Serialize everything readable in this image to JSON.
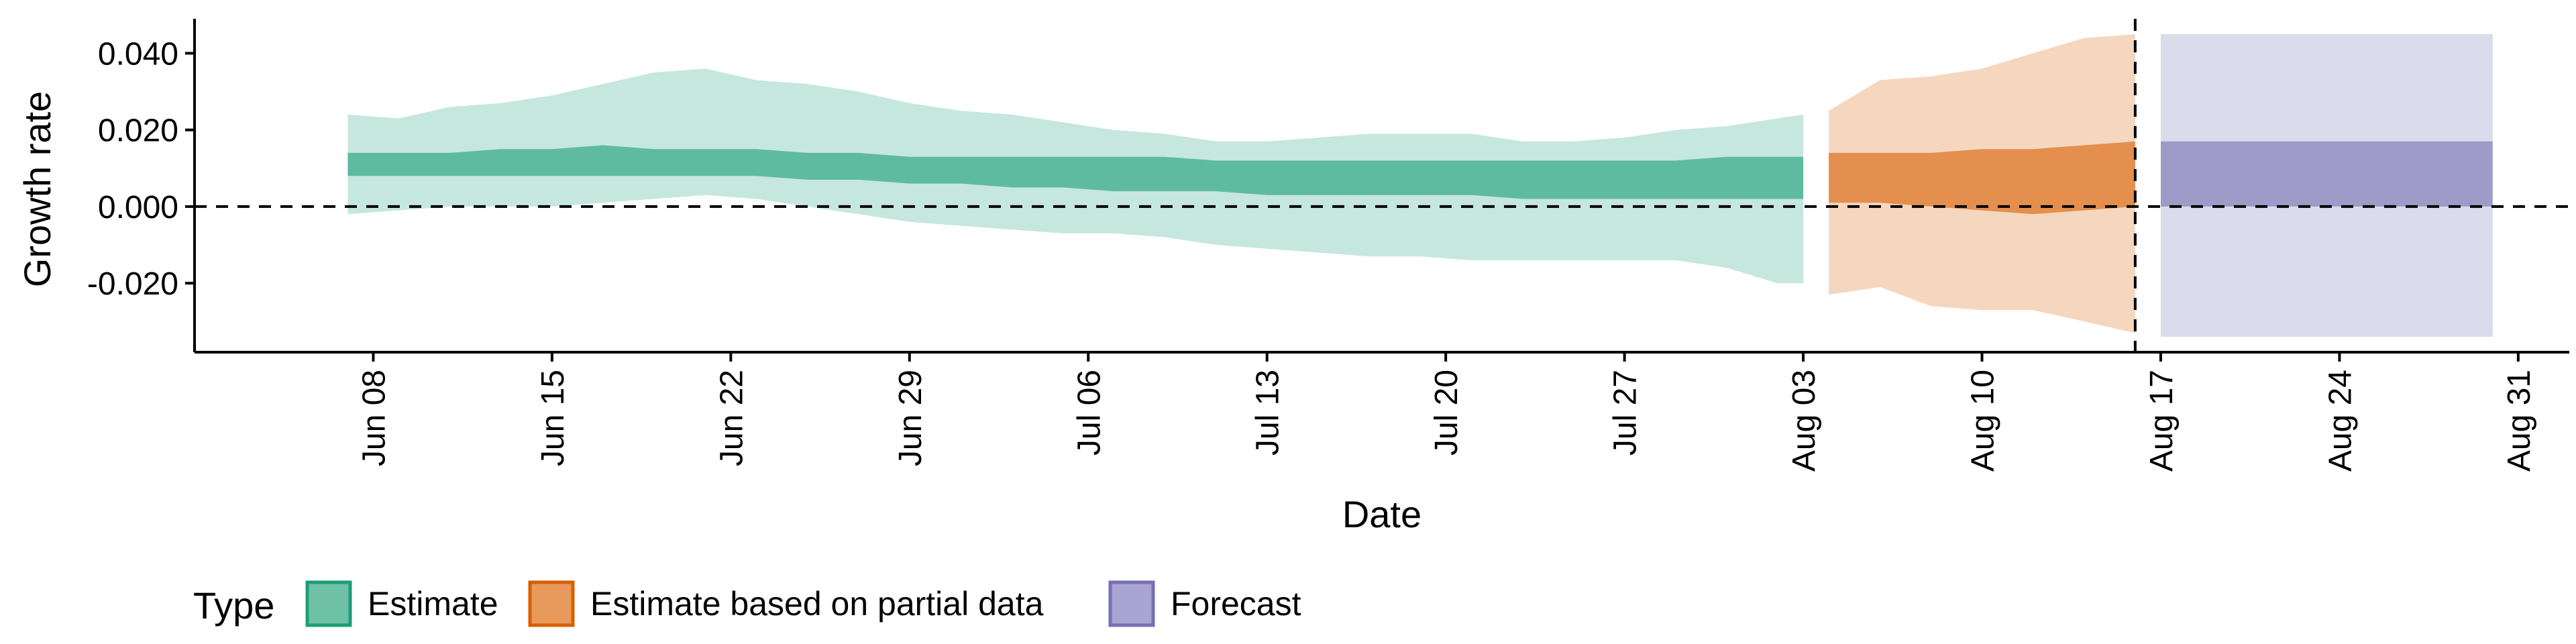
{
  "chart_data": {
    "type": "area",
    "xlabel": "Date",
    "ylabel": "Growth rate",
    "x_range": [
      "2020-06-01",
      "2020-09-02"
    ],
    "ylim": [
      -0.038,
      0.049
    ],
    "y_ticks": [
      {
        "value": -0.02,
        "label": "-0.020"
      },
      {
        "value": 0.0,
        "label": "0.000"
      },
      {
        "value": 0.02,
        "label": "0.020"
      },
      {
        "value": 0.04,
        "label": "0.040"
      }
    ],
    "x_ticks": [
      {
        "date": "2020-06-08",
        "label": "Jun 08"
      },
      {
        "date": "2020-06-15",
        "label": "Jun 15"
      },
      {
        "date": "2020-06-22",
        "label": "Jun 22"
      },
      {
        "date": "2020-06-29",
        "label": "Jun 29"
      },
      {
        "date": "2020-07-06",
        "label": "Jul 06"
      },
      {
        "date": "2020-07-13",
        "label": "Jul 13"
      },
      {
        "date": "2020-07-20",
        "label": "Jul 20"
      },
      {
        "date": "2020-07-27",
        "label": "Jul 27"
      },
      {
        "date": "2020-08-03",
        "label": "Aug 03"
      },
      {
        "date": "2020-08-10",
        "label": "Aug 10"
      },
      {
        "date": "2020-08-17",
        "label": "Aug 17"
      },
      {
        "date": "2020-08-24",
        "label": "Aug 24"
      },
      {
        "date": "2020-08-31",
        "label": "Aug 31"
      }
    ],
    "grid": false,
    "reference_lines": {
      "horizontal_y": 0.0,
      "vertical_date": "2020-08-16"
    },
    "legend": {
      "title": "Type",
      "position": "bottom-left",
      "entries": [
        {
          "label": "Estimate",
          "color": "#6fc1a6"
        },
        {
          "label": "Estimate based on partial data",
          "color": "#e8995c"
        },
        {
          "label": "Forecast",
          "color": "#a9a4d2"
        }
      ]
    },
    "series": [
      {
        "name": "Estimate",
        "fill_color": "#1b9e77",
        "outer_opacity": 0.25,
        "inner_opacity": 0.6,
        "points": [
          {
            "date": "2020-06-07",
            "lo90": -0.002,
            "lo50": 0.008,
            "hi50": 0.014,
            "hi90": 0.024
          },
          {
            "date": "2020-06-09",
            "lo90": -0.001,
            "lo50": 0.008,
            "hi50": 0.014,
            "hi90": 0.023
          },
          {
            "date": "2020-06-11",
            "lo90": 0.0,
            "lo50": 0.008,
            "hi50": 0.014,
            "hi90": 0.026
          },
          {
            "date": "2020-06-13",
            "lo90": 0.0,
            "lo50": 0.008,
            "hi50": 0.015,
            "hi90": 0.027
          },
          {
            "date": "2020-06-15",
            "lo90": 0.0,
            "lo50": 0.008,
            "hi50": 0.015,
            "hi90": 0.029
          },
          {
            "date": "2020-06-17",
            "lo90": 0.001,
            "lo50": 0.008,
            "hi50": 0.016,
            "hi90": 0.032
          },
          {
            "date": "2020-06-19",
            "lo90": 0.002,
            "lo50": 0.008,
            "hi50": 0.015,
            "hi90": 0.035
          },
          {
            "date": "2020-06-21",
            "lo90": 0.003,
            "lo50": 0.008,
            "hi50": 0.015,
            "hi90": 0.036
          },
          {
            "date": "2020-06-23",
            "lo90": 0.002,
            "lo50": 0.008,
            "hi50": 0.015,
            "hi90": 0.033
          },
          {
            "date": "2020-06-25",
            "lo90": 0.0,
            "lo50": 0.007,
            "hi50": 0.014,
            "hi90": 0.032
          },
          {
            "date": "2020-06-27",
            "lo90": -0.002,
            "lo50": 0.007,
            "hi50": 0.014,
            "hi90": 0.03
          },
          {
            "date": "2020-06-29",
            "lo90": -0.004,
            "lo50": 0.006,
            "hi50": 0.013,
            "hi90": 0.027
          },
          {
            "date": "2020-07-01",
            "lo90": -0.005,
            "lo50": 0.006,
            "hi50": 0.013,
            "hi90": 0.025
          },
          {
            "date": "2020-07-03",
            "lo90": -0.006,
            "lo50": 0.005,
            "hi50": 0.013,
            "hi90": 0.024
          },
          {
            "date": "2020-07-05",
            "lo90": -0.007,
            "lo50": 0.005,
            "hi50": 0.013,
            "hi90": 0.022
          },
          {
            "date": "2020-07-07",
            "lo90": -0.007,
            "lo50": 0.004,
            "hi50": 0.013,
            "hi90": 0.02
          },
          {
            "date": "2020-07-09",
            "lo90": -0.008,
            "lo50": 0.004,
            "hi50": 0.013,
            "hi90": 0.019
          },
          {
            "date": "2020-07-11",
            "lo90": -0.01,
            "lo50": 0.004,
            "hi50": 0.012,
            "hi90": 0.017
          },
          {
            "date": "2020-07-13",
            "lo90": -0.011,
            "lo50": 0.003,
            "hi50": 0.012,
            "hi90": 0.017
          },
          {
            "date": "2020-07-15",
            "lo90": -0.012,
            "lo50": 0.003,
            "hi50": 0.012,
            "hi90": 0.018
          },
          {
            "date": "2020-07-17",
            "lo90": -0.013,
            "lo50": 0.003,
            "hi50": 0.012,
            "hi90": 0.019
          },
          {
            "date": "2020-07-19",
            "lo90": -0.013,
            "lo50": 0.003,
            "hi50": 0.012,
            "hi90": 0.019
          },
          {
            "date": "2020-07-21",
            "lo90": -0.014,
            "lo50": 0.003,
            "hi50": 0.012,
            "hi90": 0.019
          },
          {
            "date": "2020-07-23",
            "lo90": -0.014,
            "lo50": 0.002,
            "hi50": 0.012,
            "hi90": 0.017
          },
          {
            "date": "2020-07-25",
            "lo90": -0.014,
            "lo50": 0.002,
            "hi50": 0.012,
            "hi90": 0.017
          },
          {
            "date": "2020-07-27",
            "lo90": -0.014,
            "lo50": 0.002,
            "hi50": 0.012,
            "hi90": 0.018
          },
          {
            "date": "2020-07-29",
            "lo90": -0.014,
            "lo50": 0.002,
            "hi50": 0.012,
            "hi90": 0.02
          },
          {
            "date": "2020-07-31",
            "lo90": -0.016,
            "lo50": 0.002,
            "hi50": 0.013,
            "hi90": 0.021
          },
          {
            "date": "2020-08-02",
            "lo90": -0.02,
            "lo50": 0.002,
            "hi50": 0.013,
            "hi90": 0.023
          },
          {
            "date": "2020-08-03",
            "lo90": -0.02,
            "lo50": 0.002,
            "hi50": 0.013,
            "hi90": 0.024
          }
        ]
      },
      {
        "name": "Estimate based on partial data",
        "fill_color": "#d95f02",
        "outer_opacity": 0.25,
        "inner_opacity": 0.6,
        "points": [
          {
            "date": "2020-08-04",
            "lo90": -0.023,
            "lo50": 0.001,
            "hi50": 0.014,
            "hi90": 0.025
          },
          {
            "date": "2020-08-06",
            "lo90": -0.021,
            "lo50": 0.001,
            "hi50": 0.014,
            "hi90": 0.033
          },
          {
            "date": "2020-08-08",
            "lo90": -0.026,
            "lo50": 0.0,
            "hi50": 0.014,
            "hi90": 0.034
          },
          {
            "date": "2020-08-10",
            "lo90": -0.027,
            "lo50": -0.001,
            "hi50": 0.015,
            "hi90": 0.036
          },
          {
            "date": "2020-08-12",
            "lo90": -0.027,
            "lo50": -0.002,
            "hi50": 0.015,
            "hi90": 0.04
          },
          {
            "date": "2020-08-14",
            "lo90": -0.03,
            "lo50": -0.001,
            "hi50": 0.016,
            "hi90": 0.044
          },
          {
            "date": "2020-08-16",
            "lo90": -0.033,
            "lo50": 0.0,
            "hi50": 0.017,
            "hi90": 0.045
          }
        ]
      },
      {
        "name": "Forecast",
        "fill_color": "#7570b3",
        "outer_opacity": 0.25,
        "inner_opacity": 0.6,
        "points": [
          {
            "date": "2020-08-17",
            "lo90": -0.034,
            "lo50": 0.0,
            "hi50": 0.017,
            "hi90": 0.045
          },
          {
            "date": "2020-08-30",
            "lo90": -0.034,
            "lo50": 0.0,
            "hi50": 0.017,
            "hi90": 0.045
          }
        ]
      }
    ]
  }
}
